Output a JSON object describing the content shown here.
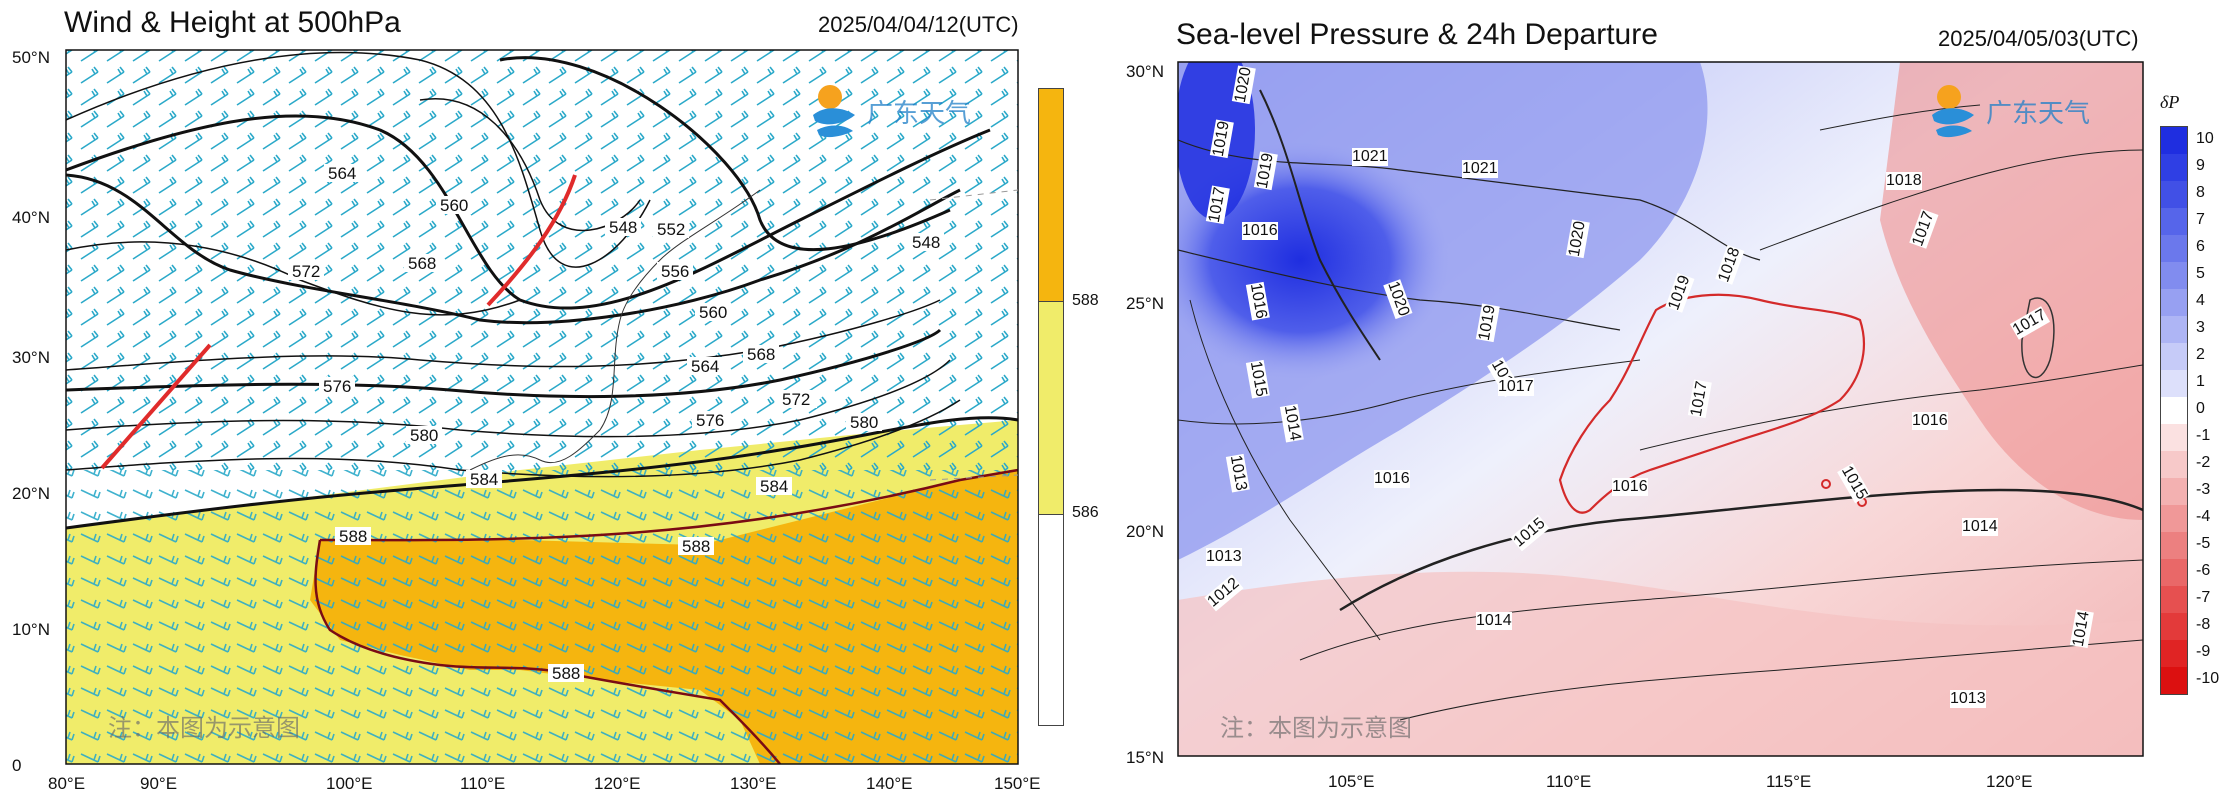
{
  "left": {
    "title": "Wind & Height at 500hPa",
    "timestamp": "2025/04/04/12(UTC)",
    "lat_labels": [
      "0",
      "10°N",
      "20°N",
      "30°N",
      "40°N",
      "50°N"
    ],
    "lon_labels": [
      "80°E",
      "90°E",
      "100°E",
      "110°E",
      "120°E",
      "130°E",
      "140°E",
      "150°E"
    ],
    "contour_labels": [
      "564",
      "560",
      "568",
      "572",
      "548",
      "552",
      "556",
      "560",
      "564",
      "568",
      "572",
      "548",
      "576",
      "576",
      "580",
      "580",
      "584",
      "584",
      "588",
      "588",
      "588"
    ],
    "colorbar_labels": [
      "588",
      "586"
    ],
    "watermark_logo": "广东天气",
    "watermark_note": "注：本图为示意图",
    "colors": {
      "fill_588": "#f5b50f",
      "fill_586": "#f0ec6a",
      "barbs": "#2ba9c9",
      "trough": "#e02b2b",
      "coast_588": "#7a0c14"
    }
  },
  "right": {
    "title": "Sea-level Pressure & 24h Departure",
    "timestamp": "2025/04/05/03(UTC)",
    "lat_labels": [
      "15°N",
      "20°N",
      "25°N",
      "30°N"
    ],
    "lon_labels": [
      "105°E",
      "110°E",
      "115°E",
      "120°E"
    ],
    "isobar_labels": [
      "1020",
      "1019",
      "1019",
      "1017",
      "1016",
      "1021",
      "1021",
      "1020",
      "1020",
      "1019",
      "1018",
      "1018",
      "1019",
      "1016",
      "1015",
      "1014",
      "1013",
      "1013",
      "1012",
      "1016",
      "1017",
      "1017",
      "1016",
      "1016",
      "1015",
      "1015",
      "1014",
      "1014",
      "1013",
      "1014",
      "1018",
      "1017",
      "1017"
    ],
    "colorbar_title": "δP",
    "colorbar_labels": [
      "10",
      "9",
      "8",
      "7",
      "6",
      "5",
      "4",
      "3",
      "2",
      "1",
      "0",
      "-1",
      "-2",
      "-3",
      "-4",
      "-5",
      "-6",
      "-7",
      "-8",
      "-9",
      "-10"
    ],
    "colorbar_colors": [
      "#1f2ee0",
      "#2f3fe4",
      "#4150e6",
      "#5665ea",
      "#6b78ec",
      "#818cef",
      "#97a0f2",
      "#aeb5f5",
      "#c6cbf8",
      "#dde0fb",
      "#ffffff",
      "#fbe1e1",
      "#f7c9c9",
      "#f3b1b1",
      "#f09898",
      "#ec8080",
      "#e96868",
      "#e65050",
      "#e33a3a",
      "#e02424",
      "#dc1010"
    ],
    "watermark_logo": "广东天气",
    "watermark_note": "注：本图为示意图"
  }
}
